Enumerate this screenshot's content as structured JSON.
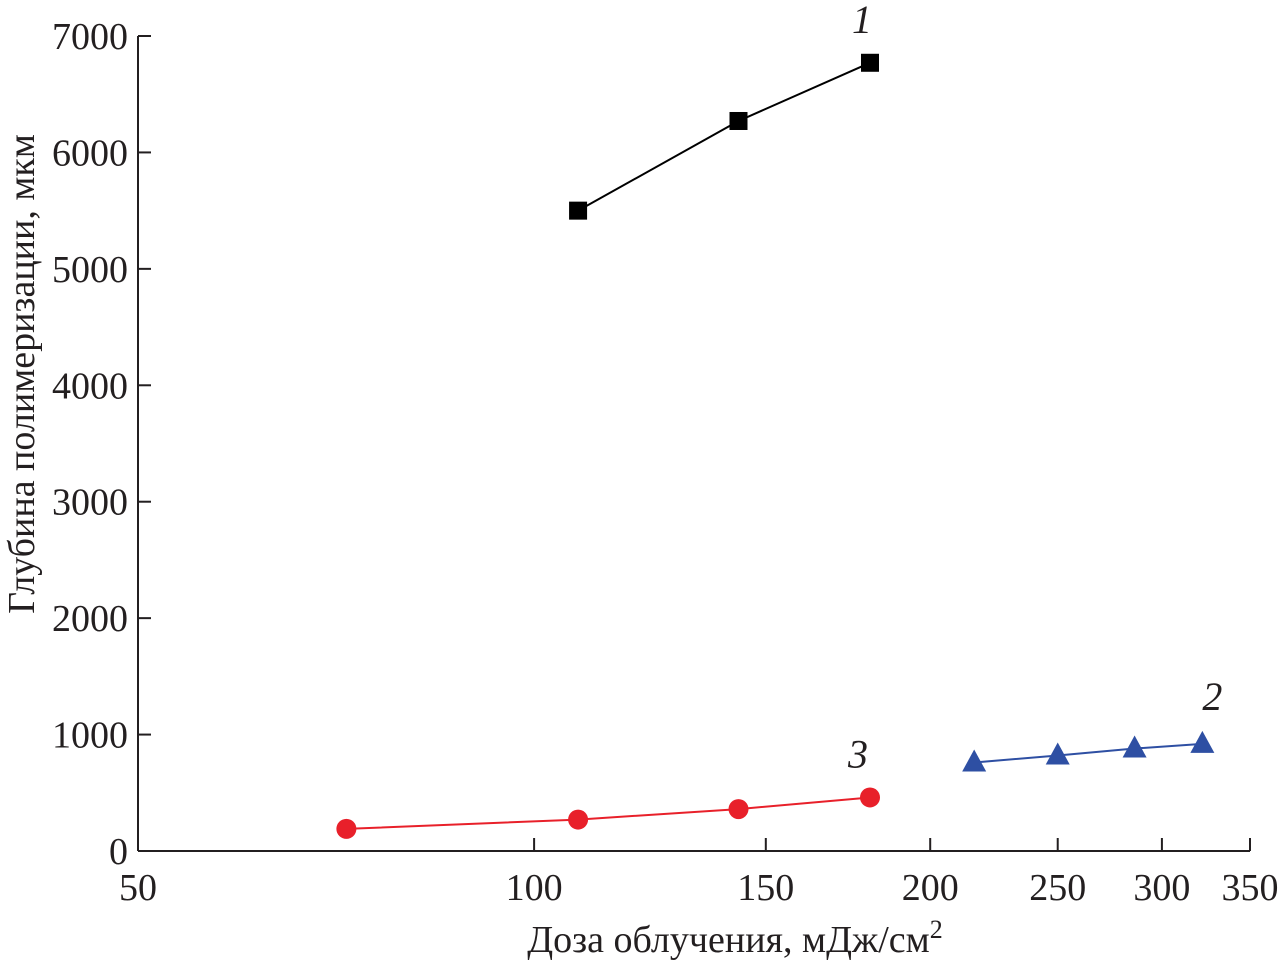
{
  "chart_data": {
    "type": "line",
    "title": "",
    "xlabel": "Доза облучения, мДж/см",
    "xlabel_superscript": "2",
    "ylabel": "Глубина полимеризации, мкм",
    "xscale": "log",
    "xlim": [
      50,
      350
    ],
    "ylim": [
      0,
      7000
    ],
    "xticks": [
      50,
      100,
      150,
      200,
      250,
      300,
      350
    ],
    "xtick_labels": [
      "50",
      "100",
      "150",
      "200",
      "250",
      "300",
      "350"
    ],
    "yticks": [
      0,
      1000,
      2000,
      3000,
      4000,
      5000,
      6000,
      7000
    ],
    "ytick_labels": [
      "0",
      "1000",
      "2000",
      "3000",
      "4000",
      "5000",
      "6000",
      "7000"
    ],
    "grid": false,
    "legend": "none",
    "series": [
      {
        "label": "1",
        "marker": "square",
        "color": "#000000",
        "x": [
          108,
          143,
          180
        ],
        "y": [
          5500,
          6270,
          6770
        ]
      },
      {
        "label": "2",
        "marker": "triangle",
        "color": "#2e4fa3",
        "x": [
          216,
          250,
          286,
          322
        ],
        "y": [
          760,
          820,
          880,
          920
        ]
      },
      {
        "label": "3",
        "marker": "circle",
        "color": "#e8202a",
        "x": [
          72,
          108,
          143,
          180
        ],
        "y": [
          190,
          270,
          360,
          460
        ]
      }
    ]
  }
}
